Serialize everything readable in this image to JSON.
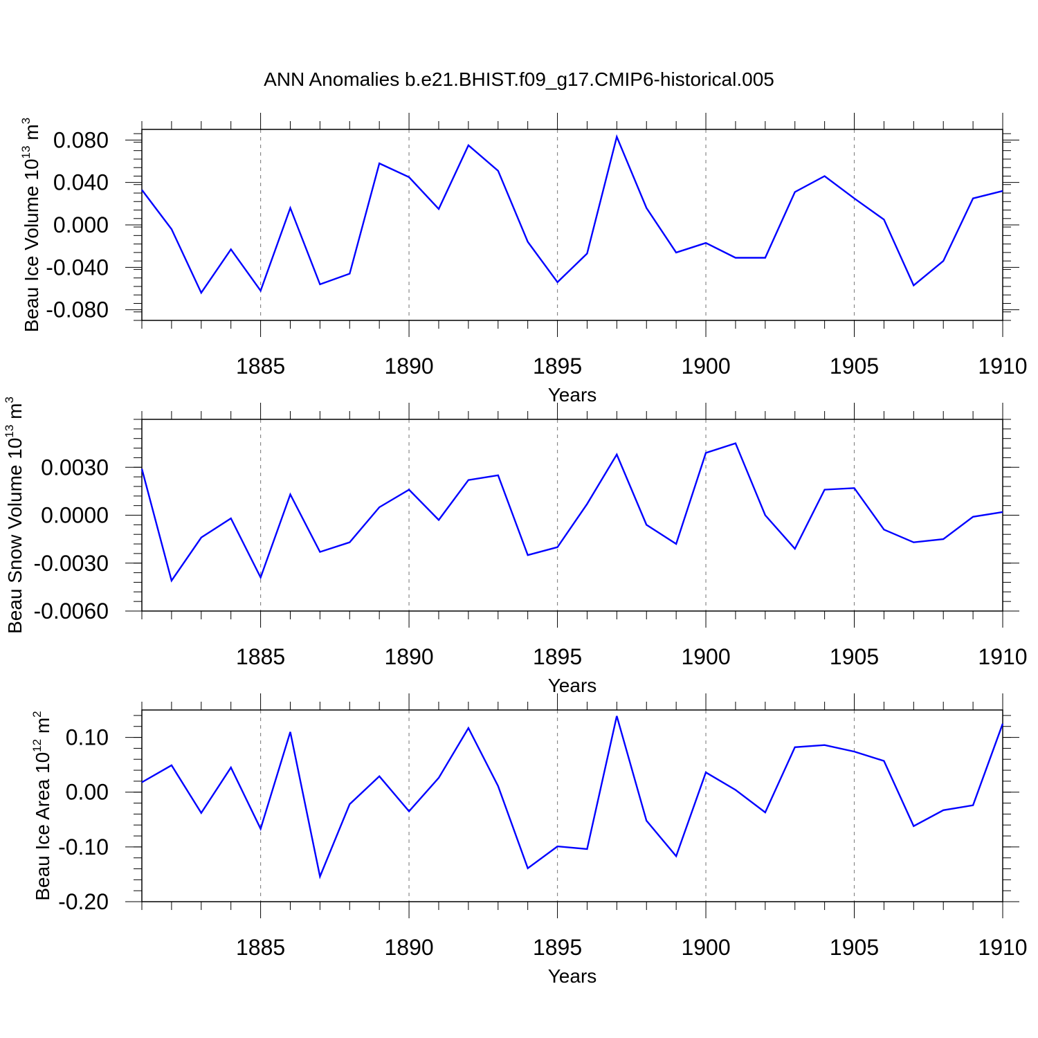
{
  "chart_data": {
    "title": "ANN Anomalies b.e21.BHIST.f09_g17.CMIP6-historical.005",
    "panels": [
      {
        "type": "line",
        "ylabel": {
          "text": "Beau Ice Volume 10",
          "exp": "13",
          "unit": "m",
          "unit_exp": "3"
        },
        "xlabel": "Years",
        "xlim": [
          1881,
          1910
        ],
        "ylim": [
          -0.09,
          0.09
        ],
        "y_major_ticks": [
          -0.08,
          -0.04,
          0.0,
          0.04,
          0.08
        ],
        "y_tick_labels": [
          "-0.080",
          "-0.040",
          "0.000",
          "0.040",
          "0.080"
        ],
        "x_tick_labels": [
          "1885",
          "1890",
          "1895",
          "1900",
          "1905",
          "1910"
        ],
        "series": [
          {
            "name": "Beau Ice Volume",
            "color": "#0000ff",
            "x": [
              1881,
              1882,
              1883,
              1884,
              1885,
              1886,
              1887,
              1888,
              1889,
              1890,
              1891,
              1892,
              1893,
              1894,
              1895,
              1896,
              1897,
              1898,
              1899,
              1900,
              1901,
              1902,
              1903,
              1904,
              1905,
              1906,
              1907,
              1908,
              1909,
              1910
            ],
            "y": [
              0.033,
              -0.004,
              -0.064,
              -0.023,
              -0.062,
              0.016,
              -0.056,
              -0.046,
              0.058,
              0.045,
              0.015,
              0.075,
              0.051,
              -0.016,
              -0.054,
              -0.027,
              0.083,
              0.016,
              -0.026,
              -0.017,
              -0.031,
              -0.031,
              0.031,
              0.046,
              0.025,
              0.005,
              -0.057,
              -0.034,
              0.025,
              0.032
            ]
          }
        ]
      },
      {
        "type": "line",
        "ylabel": {
          "text": "Beau Snow Volume 10",
          "exp": "13",
          "unit": "m",
          "unit_exp": "3"
        },
        "xlabel": "Years",
        "xlim": [
          1881,
          1910
        ],
        "ylim": [
          -0.006,
          0.006
        ],
        "y_major_ticks": [
          -0.006,
          -0.003,
          0.0,
          0.003
        ],
        "y_tick_labels": [
          "-0.0060",
          "-0.0030",
          "0.0000",
          "0.0030"
        ],
        "x_tick_labels": [
          "1885",
          "1890",
          "1895",
          "1900",
          "1905",
          "1910"
        ],
        "series": [
          {
            "name": "Beau Snow Volume",
            "color": "#0000ff",
            "x": [
              1881,
              1882,
              1883,
              1884,
              1885,
              1886,
              1887,
              1888,
              1889,
              1890,
              1891,
              1892,
              1893,
              1894,
              1895,
              1896,
              1897,
              1898,
              1899,
              1900,
              1901,
              1902,
              1903,
              1904,
              1905,
              1906,
              1907,
              1908,
              1909,
              1910
            ],
            "y": [
              0.0029,
              -0.0041,
              -0.0014,
              -0.0002,
              -0.0039,
              0.0013,
              -0.0023,
              -0.0017,
              0.0005,
              0.0016,
              -0.0003,
              0.0022,
              0.0025,
              -0.0025,
              -0.002,
              0.0007,
              0.0038,
              -0.0006,
              -0.0018,
              0.0039,
              0.0045,
              0.0,
              -0.0021,
              0.0016,
              0.0017,
              -0.0009,
              -0.0017,
              -0.0015,
              -0.0001,
              0.0002
            ]
          }
        ]
      },
      {
        "type": "line",
        "ylabel": {
          "text": "Beau Ice Area 10",
          "exp": "12",
          "unit": "m",
          "unit_exp": "2"
        },
        "xlabel": "Years",
        "xlim": [
          1881,
          1910
        ],
        "ylim": [
          -0.2,
          0.15
        ],
        "y_major_ticks": [
          -0.2,
          -0.1,
          0.0,
          0.1
        ],
        "y_tick_labels": [
          "-0.20",
          "-0.10",
          "0.00",
          "0.10"
        ],
        "x_tick_labels": [
          "1885",
          "1890",
          "1895",
          "1900",
          "1905",
          "1910"
        ],
        "series": [
          {
            "name": "Beau Ice Area",
            "color": "#0000ff",
            "x": [
              1881,
              1882,
              1883,
              1884,
              1885,
              1886,
              1887,
              1888,
              1889,
              1890,
              1891,
              1892,
              1893,
              1894,
              1895,
              1896,
              1897,
              1898,
              1899,
              1900,
              1901,
              1902,
              1903,
              1904,
              1905,
              1906,
              1907,
              1908,
              1909,
              1910
            ],
            "y": [
              0.018,
              0.049,
              -0.038,
              0.045,
              -0.067,
              0.11,
              -0.154,
              -0.022,
              0.029,
              -0.035,
              0.026,
              0.117,
              0.011,
              -0.139,
              -0.099,
              -0.104,
              0.139,
              -0.052,
              -0.117,
              0.036,
              0.004,
              -0.037,
              0.082,
              0.086,
              0.074,
              0.057,
              -0.062,
              -0.033,
              -0.024,
              0.125
            ]
          }
        ]
      }
    ]
  }
}
